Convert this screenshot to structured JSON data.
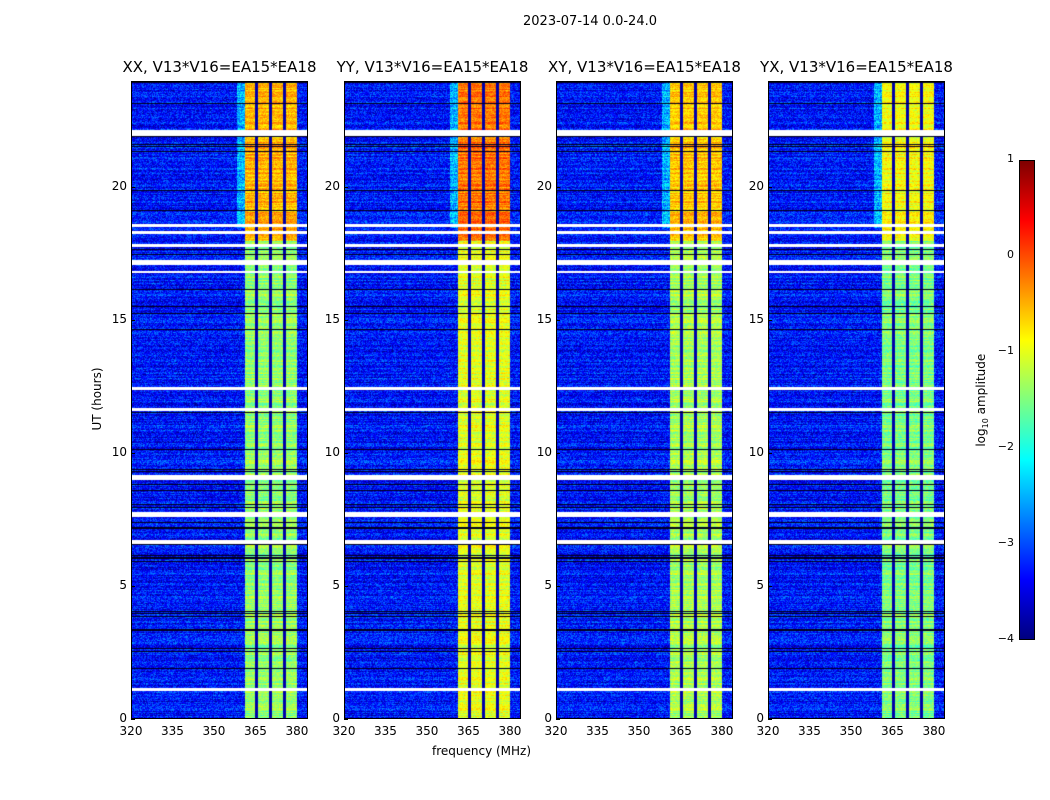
{
  "chart_data": {
    "type": "heatmap",
    "title": "2023-07-14 0.0-24.0",
    "xlabel": "frequency (MHz)",
    "ylabel": "UT (hours)",
    "xlim": [
      320,
      384
    ],
    "ylim": [
      0,
      24
    ],
    "xticks": [
      "320",
      "335",
      "350",
      "365",
      "380"
    ],
    "yticks": [
      "0",
      "5",
      "10",
      "15",
      "20"
    ],
    "panels": [
      {
        "title": "XX, V13*V16=EA15*EA18",
        "band_level": -1.4,
        "upper_level": -0.5
      },
      {
        "title": "YY, V13*V16=EA15*EA18",
        "band_level": -1.0,
        "upper_level": -0.2
      },
      {
        "title": "XY, V13*V16=EA15*EA18",
        "band_level": -1.3,
        "upper_level": -0.6
      },
      {
        "title": "YX, V13*V16=EA15*EA18",
        "band_level": -1.5,
        "upper_level": -0.9
      }
    ],
    "band_MHz": [
      360.5,
      379.5
    ],
    "background_level": -3.3,
    "flagged_hours": [
      [
        22.0,
        22.2
      ],
      [
        18.3,
        18.4
      ],
      [
        18.55,
        18.65
      ],
      [
        17.8,
        17.9
      ],
      [
        17.1,
        17.3
      ],
      [
        16.8,
        16.9
      ],
      [
        12.4,
        12.5
      ],
      [
        11.6,
        11.7
      ],
      [
        9.0,
        9.2
      ],
      [
        7.6,
        7.8
      ],
      [
        6.6,
        6.75
      ],
      [
        1.05,
        1.15
      ]
    ],
    "colorbar": {
      "label": "log10 amplitude",
      "ticks": [
        "1",
        "0",
        "−1",
        "−2",
        "−3",
        "−4"
      ],
      "range": [
        -4,
        1
      ]
    }
  }
}
